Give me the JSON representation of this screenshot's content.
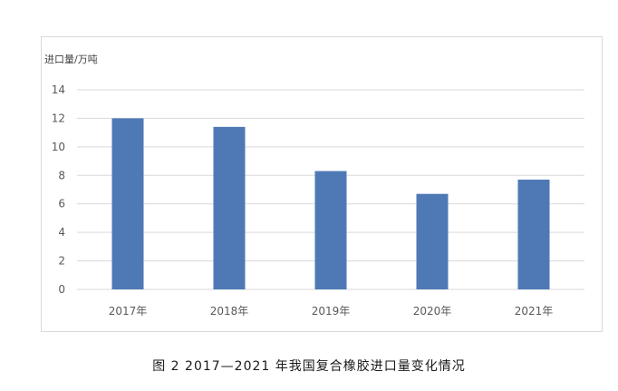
{
  "caption": "图 2  2017—2021 年我国复合橡胶进口量变化情况",
  "chart_data": {
    "type": "bar",
    "ylabel": "进口量/万吨",
    "categories": [
      "2017年",
      "2018年",
      "2019年",
      "2020年",
      "2021年"
    ],
    "values": [
      12.0,
      11.4,
      8.3,
      6.7,
      7.7
    ],
    "ylim": [
      0,
      14
    ],
    "yticks": [
      0,
      2,
      4,
      6,
      8,
      10,
      12,
      14
    ],
    "grid": true,
    "bar_color": "#4e79b5",
    "grid_color": "#d9d9d9"
  }
}
